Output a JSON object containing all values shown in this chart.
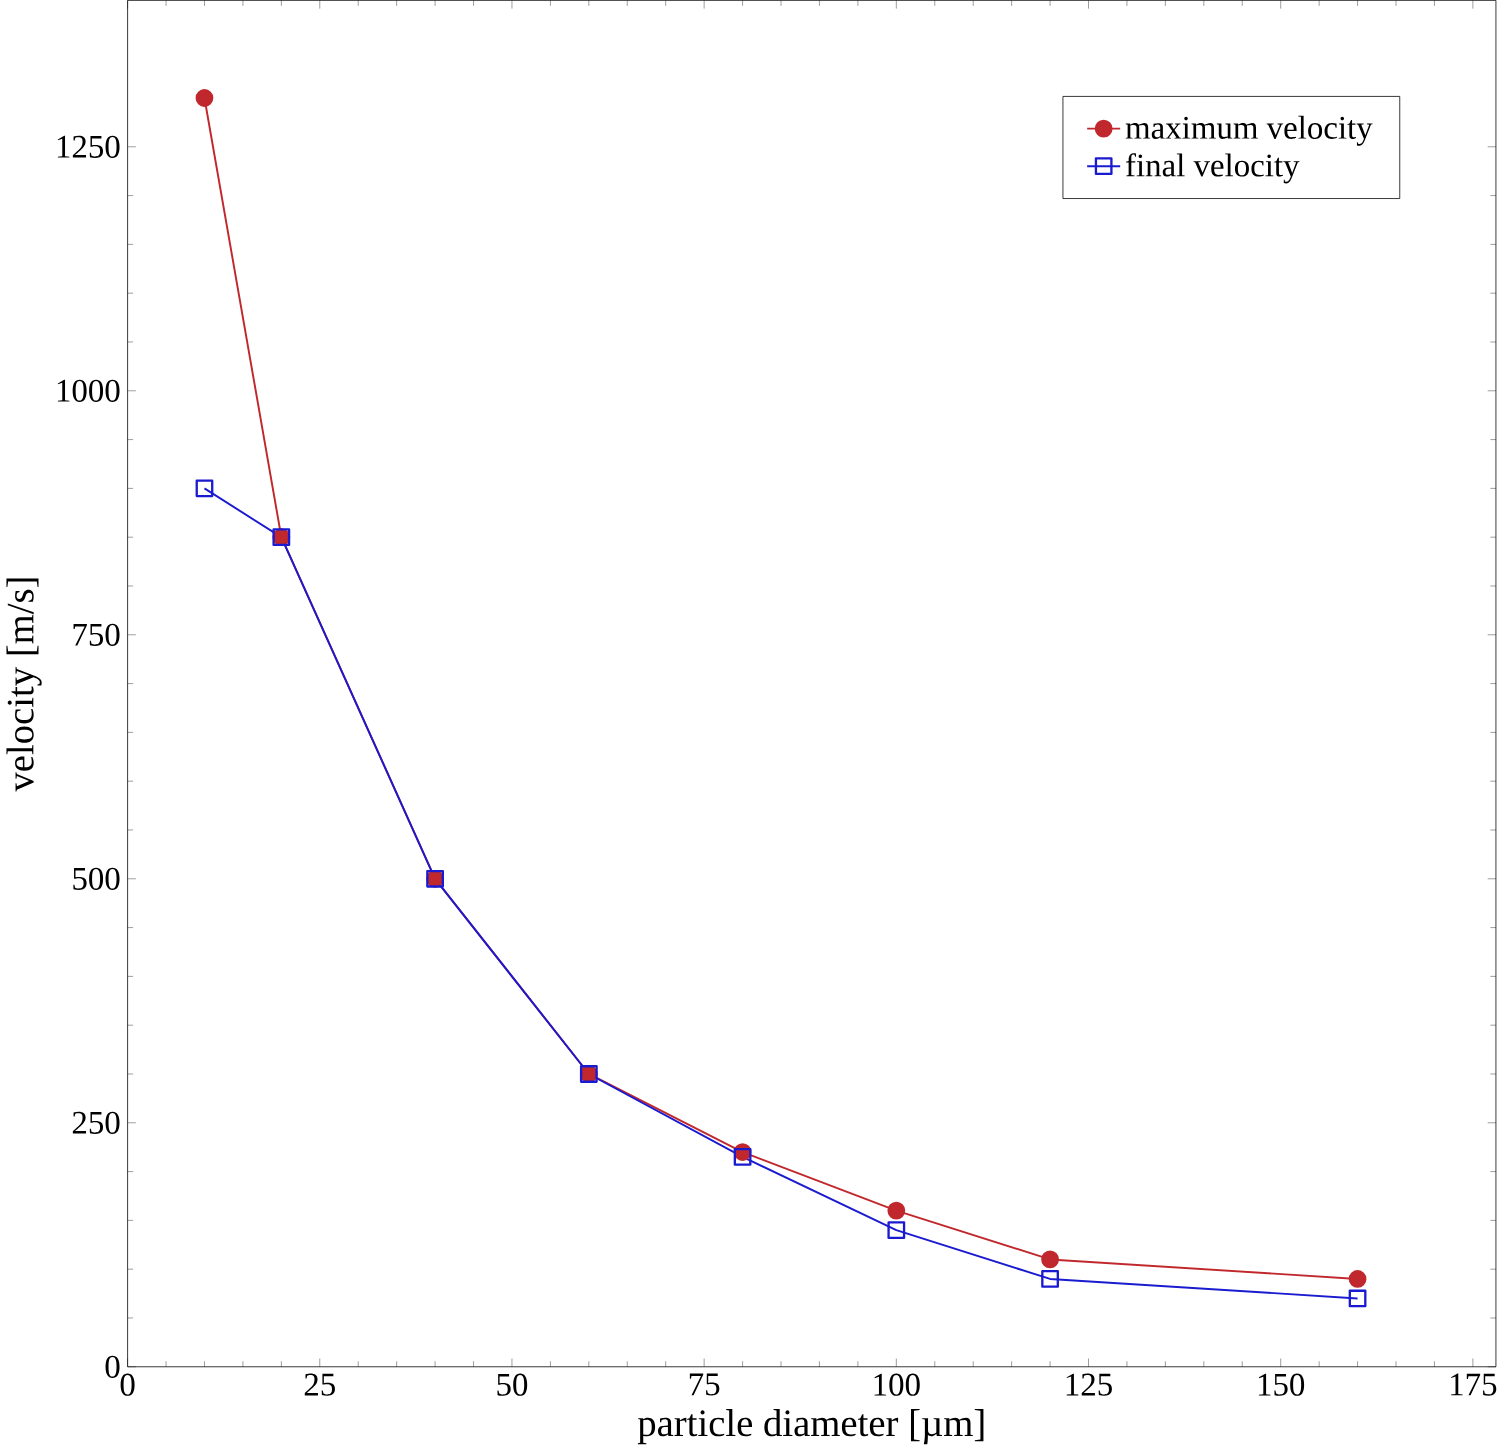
{
  "chart_data": {
    "type": "line",
    "xlabel": "particle diameter [µm]",
    "ylabel": "velocity [m/s]",
    "xlim": [
      0,
      178
    ],
    "ylim": [
      0,
      1400
    ],
    "xticks": [
      0,
      25,
      50,
      75,
      100,
      125,
      150,
      175
    ],
    "yticks": [
      0,
      250,
      500,
      750,
      1000,
      1250
    ],
    "grid": false,
    "legend": "top right",
    "series": [
      {
        "name": "maximum velocity",
        "color": "#c0282d",
        "marker": "circle",
        "x": [
          10,
          20,
          40,
          60,
          80,
          100,
          120,
          160
        ],
        "values": [
          1300,
          850,
          500,
          300,
          220,
          160,
          110,
          90
        ]
      },
      {
        "name": "final velocity",
        "color": "#1a1ad0",
        "marker": "square",
        "x": [
          10,
          20,
          40,
          60,
          80,
          100,
          120,
          160
        ],
        "values": [
          900,
          850,
          500,
          300,
          215,
          140,
          90,
          70
        ]
      }
    ]
  }
}
